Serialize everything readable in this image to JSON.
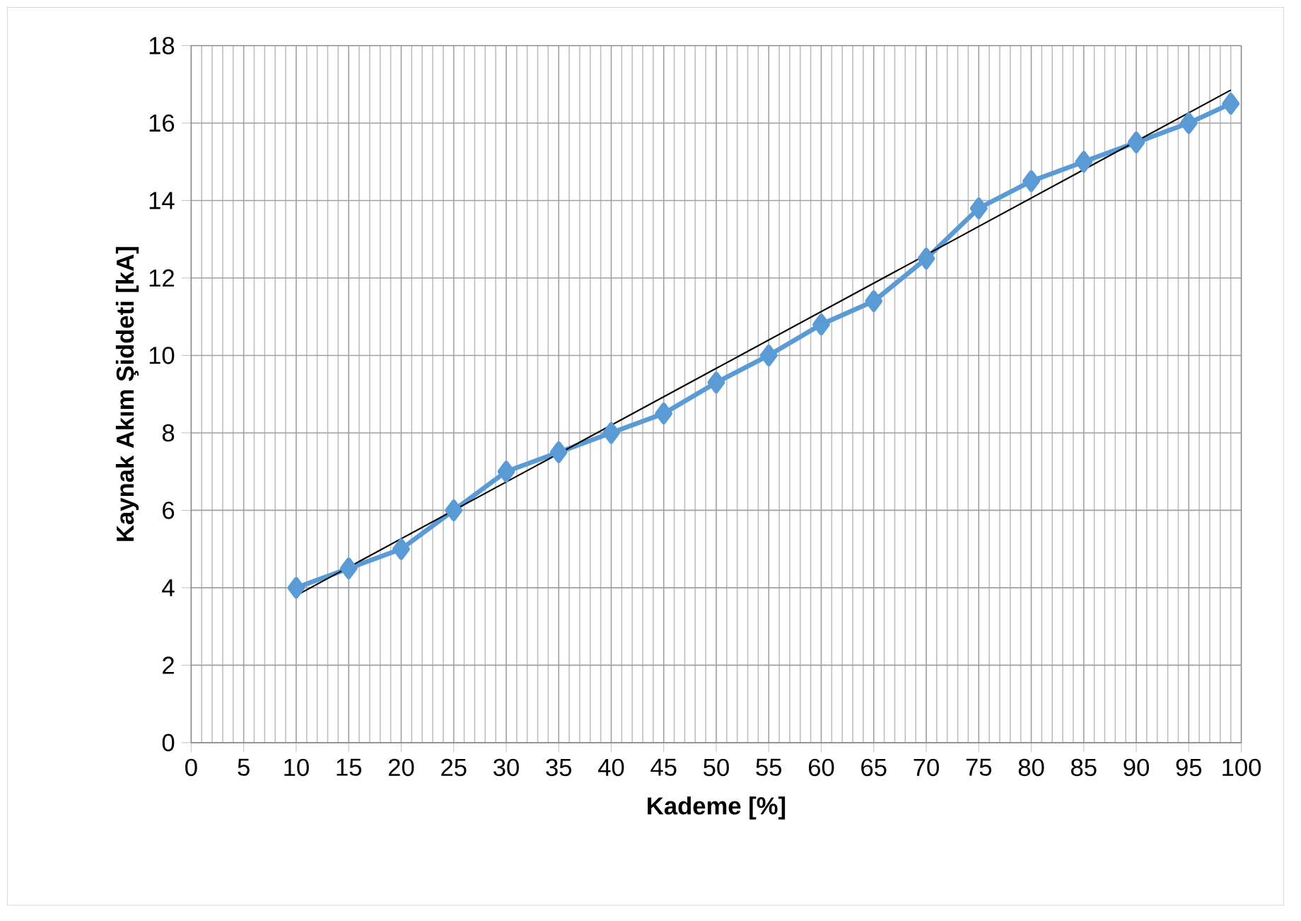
{
  "chart_data": {
    "type": "line",
    "xlabel": "Kademe   [%]",
    "ylabel": "Kaynak Akım Şiddeti   [kA]",
    "xlim": [
      0,
      100
    ],
    "ylim": [
      0,
      18
    ],
    "xticks": [
      0,
      5,
      10,
      15,
      20,
      25,
      30,
      35,
      40,
      45,
      50,
      55,
      60,
      65,
      70,
      75,
      80,
      85,
      90,
      95,
      100
    ],
    "yticks": [
      0,
      2,
      4,
      6,
      8,
      10,
      12,
      14,
      16,
      18
    ],
    "grid": true,
    "series": [
      {
        "color": "#5b9bd5",
        "marker": "diamond",
        "x": [
          10,
          15,
          20,
          25,
          30,
          35,
          40,
          45,
          50,
          55,
          60,
          65,
          70,
          75,
          80,
          85,
          90,
          95,
          99
        ],
        "values": [
          4,
          4.5,
          5,
          6,
          7,
          7.5,
          8,
          8.5,
          9.3,
          10,
          10.8,
          11.4,
          12.5,
          13.8,
          14.5,
          15,
          15.5,
          16,
          16.5
        ]
      },
      {
        "color": "#000000",
        "marker": "none",
        "x": [
          10,
          99
        ],
        "values": [
          3.8,
          16.85
        ]
      }
    ]
  }
}
